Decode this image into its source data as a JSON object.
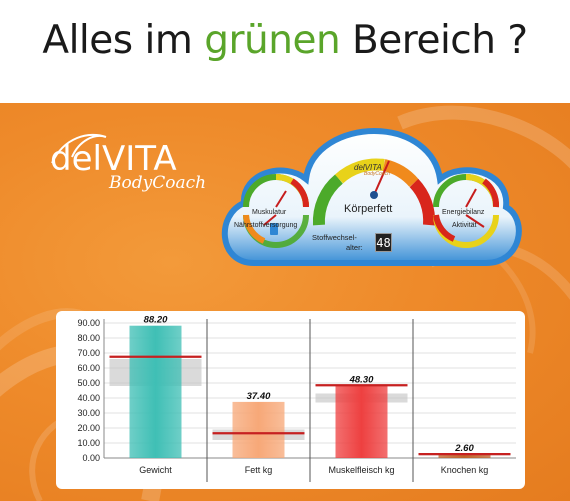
{
  "headline": {
    "before": "Alles im ",
    "highlight": "grünen",
    "after": " Bereich ?"
  },
  "logo": {
    "main": "delVITA",
    "sub": "BodyCoach"
  },
  "dashboard": {
    "center_title": "Körperfett",
    "center_brand": "delVITA",
    "center_brand_sub": "BodyCoach",
    "left_gauge_top": "Muskulatur",
    "left_gauge_bottom": "Nährstoffversorgung",
    "right_gauge_top": "Energiebilanz",
    "right_gauge_bottom": "Aktivität",
    "age_label_line1": "Stoffwechsel-",
    "age_label_line2": "alter:",
    "age_value": "48",
    "colors": {
      "green": "#4caa2a",
      "yellow": "#e8d21a",
      "orange": "#f08a1c",
      "red": "#d8261c",
      "blue": "#1f7fd0"
    }
  },
  "chart_data": {
    "type": "bar",
    "categories": [
      "Gewicht",
      "Fett kg",
      "Muskelfleisch kg",
      "Knochen kg"
    ],
    "values": [
      88.2,
      37.4,
      48.3,
      2.6
    ],
    "value_labels": [
      "88.20",
      "37.40",
      "48.30",
      "2.60"
    ],
    "target_values": [
      67.5,
      16.5,
      48.5,
      2.6
    ],
    "target_range_low": [
      48.0,
      12.0,
      37.0,
      2.0
    ],
    "target_range_high": [
      66.0,
      19.0,
      43.0,
      3.0
    ],
    "bar_colors": [
      "#3fbfb5",
      "#f7a878",
      "#ee4040",
      "#c0622a"
    ],
    "yticks": [
      "0.00",
      "10.00",
      "20.00",
      "30.00",
      "40.00",
      "50.00",
      "60.00",
      "70.00",
      "80.00",
      "90.00"
    ],
    "ylim": [
      0,
      90
    ],
    "grid": true
  }
}
